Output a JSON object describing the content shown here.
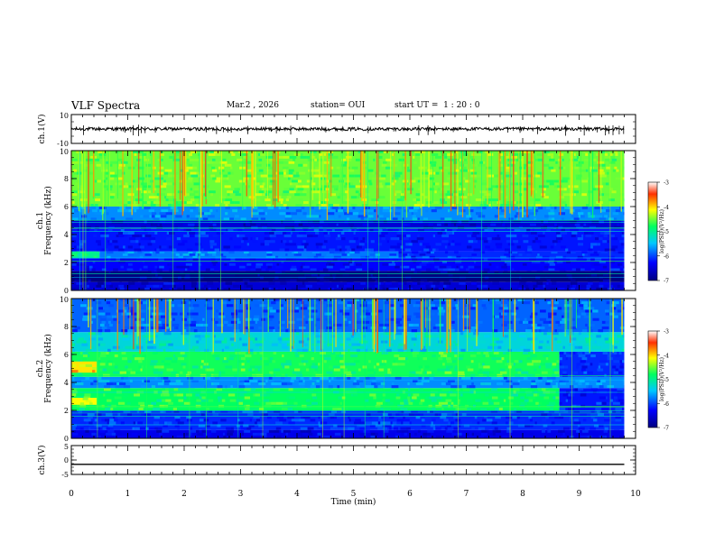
{
  "header": {
    "title": "VLF Spectra",
    "date": "Mar.2 , 2026",
    "station": "station= OUI",
    "start": "start UT =  1 : 20 : 0"
  },
  "chart_data": [
    {
      "id": "ch1-waveform",
      "type": "line",
      "ylabel": "ch.1(V)",
      "ylim": [
        -10,
        10
      ],
      "yticks": [
        "10",
        "-10"
      ],
      "baseline": 0,
      "xlim": [
        0,
        10
      ],
      "data_end": 9.8
    },
    {
      "id": "ch1-spectrogram",
      "type": "heatmap",
      "ylabel": "ch.1\nFrequency (kHz)",
      "ylim": [
        0,
        10
      ],
      "yticks": [
        "0",
        "2",
        "4",
        "6",
        "8",
        "10"
      ],
      "xlim": [
        0,
        10
      ],
      "data_end": 9.8,
      "colorbar": {
        "label": "log(PSD)(V²/Hz)",
        "range": [
          -7,
          -3
        ],
        "ticks": [
          "-3",
          "-4",
          "-5",
          "-6",
          "-7"
        ]
      },
      "bands": [
        {
          "f0": 0,
          "f1": 0.6,
          "level": 0.12,
          "x1": 10
        },
        {
          "f0": 0.6,
          "f1": 1.4,
          "level": 0.0,
          "x1": 10
        },
        {
          "f0": 1.4,
          "f1": 2.3,
          "level": 0.18,
          "x1": 10
        },
        {
          "f0": 2.3,
          "f1": 2.8,
          "level": 0.5,
          "x1": 0.5
        },
        {
          "f0": 2.3,
          "f1": 2.8,
          "level": 0.3,
          "x0": 0.5,
          "x1": 5.8
        },
        {
          "f0": 2.3,
          "f1": 2.8,
          "level": 0.22,
          "x0": 5.8
        },
        {
          "f0": 2.8,
          "f1": 4.4,
          "level": 0.2,
          "x1": 10
        },
        {
          "f0": 4.4,
          "f1": 5.0,
          "level": 0.12,
          "x1": 10
        },
        {
          "f0": 5.0,
          "f1": 6.0,
          "level": 0.32,
          "x1": 10
        },
        {
          "f0": 6.0,
          "f1": 10.0,
          "level": 0.62,
          "x1": 10
        }
      ]
    },
    {
      "id": "ch2-spectrogram",
      "type": "heatmap",
      "ylabel": "ch.2\nFrequency (kHz)",
      "ylim": [
        0,
        10
      ],
      "yticks": [
        "0",
        "2",
        "4",
        "6",
        "8",
        "10"
      ],
      "xlim": [
        0,
        10
      ],
      "data_end": 9.8,
      "colorbar": {
        "label": "log(PSD)(V²/Hz)",
        "range": [
          -7,
          -3
        ],
        "ticks": [
          "-3",
          "-4",
          "-5",
          "-6",
          "-7"
        ]
      },
      "bands": [
        {
          "f0": 0,
          "f1": 0.6,
          "level": 0.15,
          "x1": 10
        },
        {
          "f0": 0.6,
          "f1": 2.0,
          "level": 0.22,
          "x1": 10
        },
        {
          "f0": 2.0,
          "f1": 3.6,
          "level": 0.55,
          "x1": 8.65
        },
        {
          "f0": 2.0,
          "f1": 3.6,
          "level": 0.2,
          "x0": 8.65
        },
        {
          "f0": 2.4,
          "f1": 2.9,
          "level": 0.72,
          "x1": 0.45
        },
        {
          "f0": 3.6,
          "f1": 4.4,
          "level": 0.32,
          "x1": 10
        },
        {
          "f0": 4.4,
          "f1": 6.2,
          "level": 0.56,
          "x1": 8.65
        },
        {
          "f0": 4.4,
          "f1": 6.2,
          "level": 0.22,
          "x0": 8.65
        },
        {
          "f0": 4.7,
          "f1": 5.5,
          "level": 0.74,
          "x1": 0.45
        },
        {
          "f0": 6.2,
          "f1": 7.6,
          "level": 0.42,
          "x1": 10
        },
        {
          "f0": 7.6,
          "f1": 10.0,
          "level": 0.28,
          "x1": 10
        }
      ]
    },
    {
      "id": "ch3-waveform",
      "type": "line",
      "ylabel": "ch.3(V)",
      "ylim": [
        -5,
        5
      ],
      "yticks": [
        "5",
        "0",
        "-5"
      ],
      "baseline": -1.5,
      "xlim": [
        0,
        10
      ],
      "data_end": 9.8
    }
  ],
  "xaxis": {
    "label": "Time (min)",
    "ticks": [
      "0",
      "1",
      "2",
      "3",
      "4",
      "5",
      "6",
      "7",
      "8",
      "9",
      "10"
    ]
  }
}
